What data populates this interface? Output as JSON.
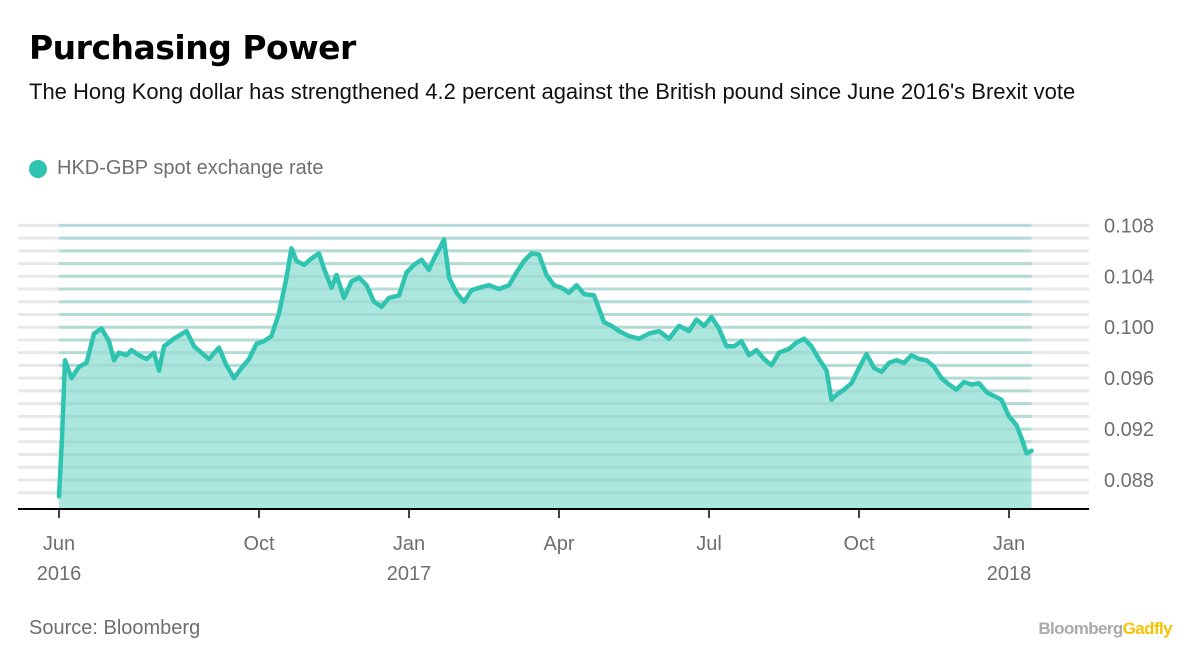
{
  "header": {
    "title": "Purchasing Power",
    "subtitle": "The Hong Kong dollar has strengthened 4.2 percent against the British pound since June 2016's Brexit vote"
  },
  "legend": {
    "label": "HKD-GBP spot exchange rate",
    "color": "#2ec4b0"
  },
  "footer": {
    "source": "Source: Bloomberg",
    "brand_part1": "Bloomberg",
    "brand_part2": "Gadfly"
  },
  "colors": {
    "line": "#2ec4b0",
    "fill": "#abe6df",
    "grid": "#e8e8e8",
    "axis": "#000000",
    "brand_gray": "#aaaaaa",
    "brand_yellow": "#f5c400"
  },
  "chart_data": {
    "type": "area",
    "title": "Purchasing Power",
    "subtitle": "The Hong Kong dollar has strengthened 4.2 percent against the British pound since June 2016's Brexit vote",
    "xlabel": "",
    "ylabel": "",
    "x_unit": "months since Jun 2016",
    "xlim": [
      -0.4,
      20.6
    ],
    "ylim": [
      0.0858,
      0.1096
    ],
    "grid": true,
    "legend_position": "top-left",
    "y_axis_side": "right",
    "yticks": [
      0.088,
      0.092,
      0.096,
      0.1,
      0.104,
      0.108
    ],
    "ytick_labels": [
      "0.088",
      "0.092",
      "0.096",
      "0.100",
      "0.104",
      "0.108"
    ],
    "gridlines": [
      0.087,
      0.088,
      0.089,
      0.09,
      0.091,
      0.092,
      0.093,
      0.094,
      0.095,
      0.096,
      0.097,
      0.098,
      0.099,
      0.1,
      0.101,
      0.102,
      0.103,
      0.104,
      0.105,
      0.106,
      0.107,
      0.108
    ],
    "xticks": [
      {
        "x": 0,
        "label": "Jun",
        "sublabel": "2016"
      },
      {
        "x": 4,
        "label": "Oct",
        "sublabel": ""
      },
      {
        "x": 7,
        "label": "Jan",
        "sublabel": "2017"
      },
      {
        "x": 10,
        "label": "Apr",
        "sublabel": ""
      },
      {
        "x": 13,
        "label": "Jul",
        "sublabel": ""
      },
      {
        "x": 16,
        "label": "Oct",
        "sublabel": ""
      },
      {
        "x": 19,
        "label": "Jan",
        "sublabel": "2018"
      }
    ],
    "series": [
      {
        "name": "HKD-GBP spot exchange rate",
        "x": [
          0.0,
          0.06,
          0.12,
          0.25,
          0.4,
          0.55,
          0.7,
          0.85,
          1.0,
          1.1,
          1.2,
          1.35,
          1.45,
          1.6,
          1.75,
          1.9,
          2.0,
          2.1,
          2.3,
          2.55,
          2.7,
          2.85,
          3.0,
          3.2,
          3.35,
          3.5,
          3.65,
          3.8,
          3.95,
          4.1,
          4.25,
          4.4,
          4.55,
          4.65,
          4.75,
          4.9,
          5.05,
          5.2,
          5.3,
          5.45,
          5.55,
          5.7,
          5.85,
          6.0,
          6.15,
          6.3,
          6.45,
          6.6,
          6.8,
          6.95,
          7.1,
          7.25,
          7.4,
          7.5,
          7.6,
          7.7,
          7.8,
          7.95,
          8.1,
          8.25,
          8.4,
          8.6,
          8.8,
          9.0,
          9.15,
          9.3,
          9.45,
          9.6,
          9.75,
          9.9,
          10.05,
          10.2,
          10.35,
          10.5,
          10.7,
          10.9,
          11.05,
          11.2,
          11.4,
          11.6,
          11.8,
          12.0,
          12.2,
          12.4,
          12.6,
          12.75,
          12.9,
          13.05,
          13.2,
          13.35,
          13.5,
          13.65,
          13.8,
          13.95,
          14.1,
          14.25,
          14.4,
          14.6,
          14.75,
          14.9,
          15.05,
          15.2,
          15.35,
          15.45,
          15.55,
          15.7,
          15.85,
          16.0,
          16.15,
          16.3,
          16.45,
          16.6,
          16.75,
          16.9,
          17.05,
          17.2,
          17.35,
          17.5,
          17.65,
          17.8,
          17.95,
          18.1,
          18.25,
          18.4,
          18.55,
          18.7,
          18.85,
          19.0,
          19.15,
          19.25,
          19.35,
          19.45
        ],
        "values": [
          0.0867,
          0.0913,
          0.0974,
          0.096,
          0.0969,
          0.0972,
          0.0995,
          0.0999,
          0.0989,
          0.0974,
          0.098,
          0.0978,
          0.0982,
          0.0978,
          0.0975,
          0.098,
          0.0966,
          0.0985,
          0.0991,
          0.0997,
          0.0985,
          0.098,
          0.0975,
          0.0984,
          0.097,
          0.096,
          0.0968,
          0.0975,
          0.0987,
          0.0989,
          0.0993,
          0.1011,
          0.1039,
          0.1062,
          0.1052,
          0.1049,
          0.1054,
          0.1058,
          0.1046,
          0.1031,
          0.1041,
          0.1023,
          0.1036,
          0.1039,
          0.1033,
          0.102,
          0.1016,
          0.1023,
          0.1025,
          0.1043,
          0.1049,
          0.1053,
          0.1045,
          0.1054,
          0.1061,
          0.1069,
          0.1039,
          0.1027,
          0.102,
          0.1029,
          0.1031,
          0.1033,
          0.103,
          0.1033,
          0.1043,
          0.1052,
          0.1058,
          0.1057,
          0.1041,
          0.1033,
          0.1031,
          0.1027,
          0.1033,
          0.1026,
          0.1025,
          0.1004,
          0.1001,
          0.0997,
          0.0993,
          0.0991,
          0.0995,
          0.0997,
          0.0991,
          0.1001,
          0.0997,
          0.1006,
          0.1001,
          0.1008,
          0.0999,
          0.0985,
          0.0985,
          0.0989,
          0.0978,
          0.0982,
          0.0975,
          0.097,
          0.098,
          0.0983,
          0.0988,
          0.0991,
          0.0985,
          0.0975,
          0.0966,
          0.0943,
          0.0947,
          0.0951,
          0.0956,
          0.0968,
          0.0979,
          0.0968,
          0.0965,
          0.0972,
          0.0974,
          0.0972,
          0.0978,
          0.0975,
          0.0974,
          0.0969,
          0.096,
          0.0955,
          0.0951,
          0.0957,
          0.0955,
          0.0956,
          0.0949,
          0.0946,
          0.0943,
          0.093,
          0.0923,
          0.0913,
          0.0901,
          0.0903
        ]
      }
    ]
  }
}
